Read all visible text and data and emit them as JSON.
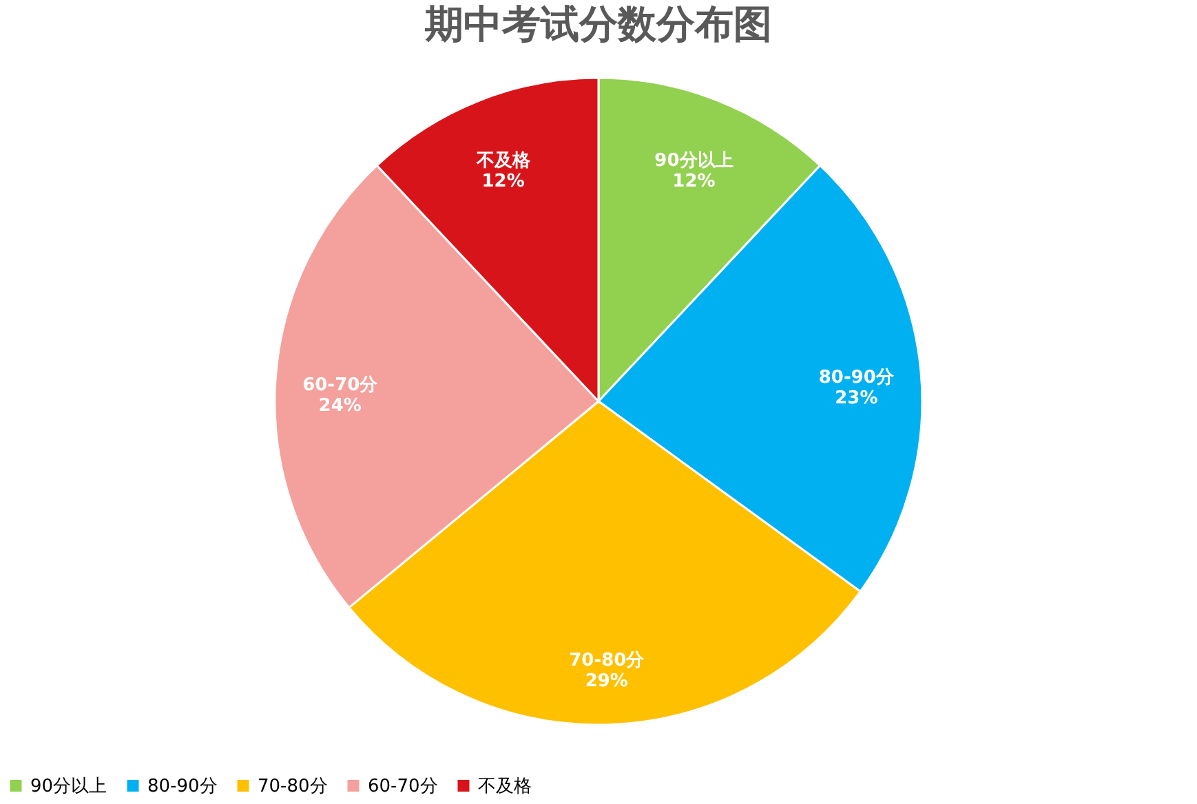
{
  "chart_data": {
    "type": "pie",
    "title": "期中考试分数分布图",
    "categories": [
      "90分以上",
      "80-90分",
      "70-80分",
      "60-70分",
      "不及格"
    ],
    "values": [
      12,
      23,
      29,
      24,
      12
    ],
    "colors": [
      "#92d050",
      "#00b0f0",
      "#ffc000",
      "#f4a09c",
      "#d7141a"
    ],
    "value_labels": [
      "12%",
      "23%",
      "29%",
      "24%",
      "12%"
    ],
    "legend": "bottom"
  }
}
